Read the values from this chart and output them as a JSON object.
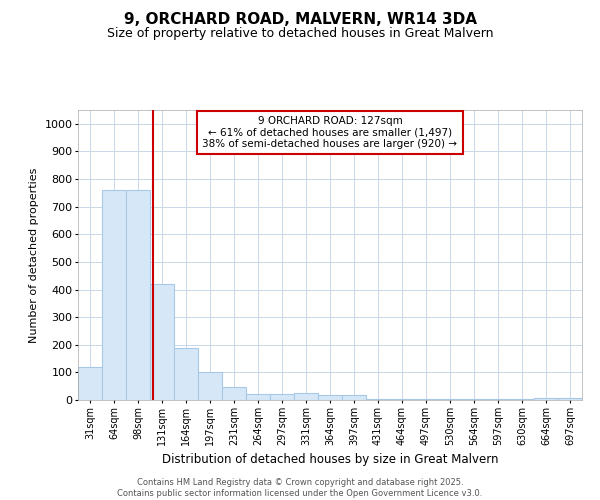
{
  "title1": "9, ORCHARD ROAD, MALVERN, WR14 3DA",
  "title2": "Size of property relative to detached houses in Great Malvern",
  "xlabel": "Distribution of detached houses by size in Great Malvern",
  "ylabel": "Number of detached properties",
  "bin_labels": [
    "31sqm",
    "64sqm",
    "98sqm",
    "131sqm",
    "164sqm",
    "197sqm",
    "231sqm",
    "264sqm",
    "297sqm",
    "331sqm",
    "364sqm",
    "397sqm",
    "431sqm",
    "464sqm",
    "497sqm",
    "530sqm",
    "564sqm",
    "597sqm",
    "630sqm",
    "664sqm",
    "697sqm"
  ],
  "bar_values": [
    120,
    760,
    760,
    420,
    190,
    100,
    47,
    22,
    22,
    25,
    17,
    18,
    5,
    5,
    5,
    5,
    5,
    5,
    5,
    8,
    8
  ],
  "bar_color": "#d6e8f7",
  "bar_edge_color": "#a8c8e8",
  "ylim": [
    0,
    1050
  ],
  "yticks": [
    0,
    100,
    200,
    300,
    400,
    500,
    600,
    700,
    800,
    900,
    1000
  ],
  "vline_color": "#cc0000",
  "vline_x": 2.62,
  "annotation_line1": "9 ORCHARD ROAD: 127sqm",
  "annotation_line2": "← 61% of detached houses are smaller (1,497)",
  "annotation_line3": "38% of semi-detached houses are larger (920) →",
  "annotation_box_color": "#cc0000",
  "footer_text": "Contains HM Land Registry data © Crown copyright and database right 2025.\nContains public sector information licensed under the Open Government Licence v3.0.",
  "background_color": "#ffffff",
  "grid_color": "#c8d8e8",
  "title_fontsize": 11,
  "subtitle_fontsize": 9
}
